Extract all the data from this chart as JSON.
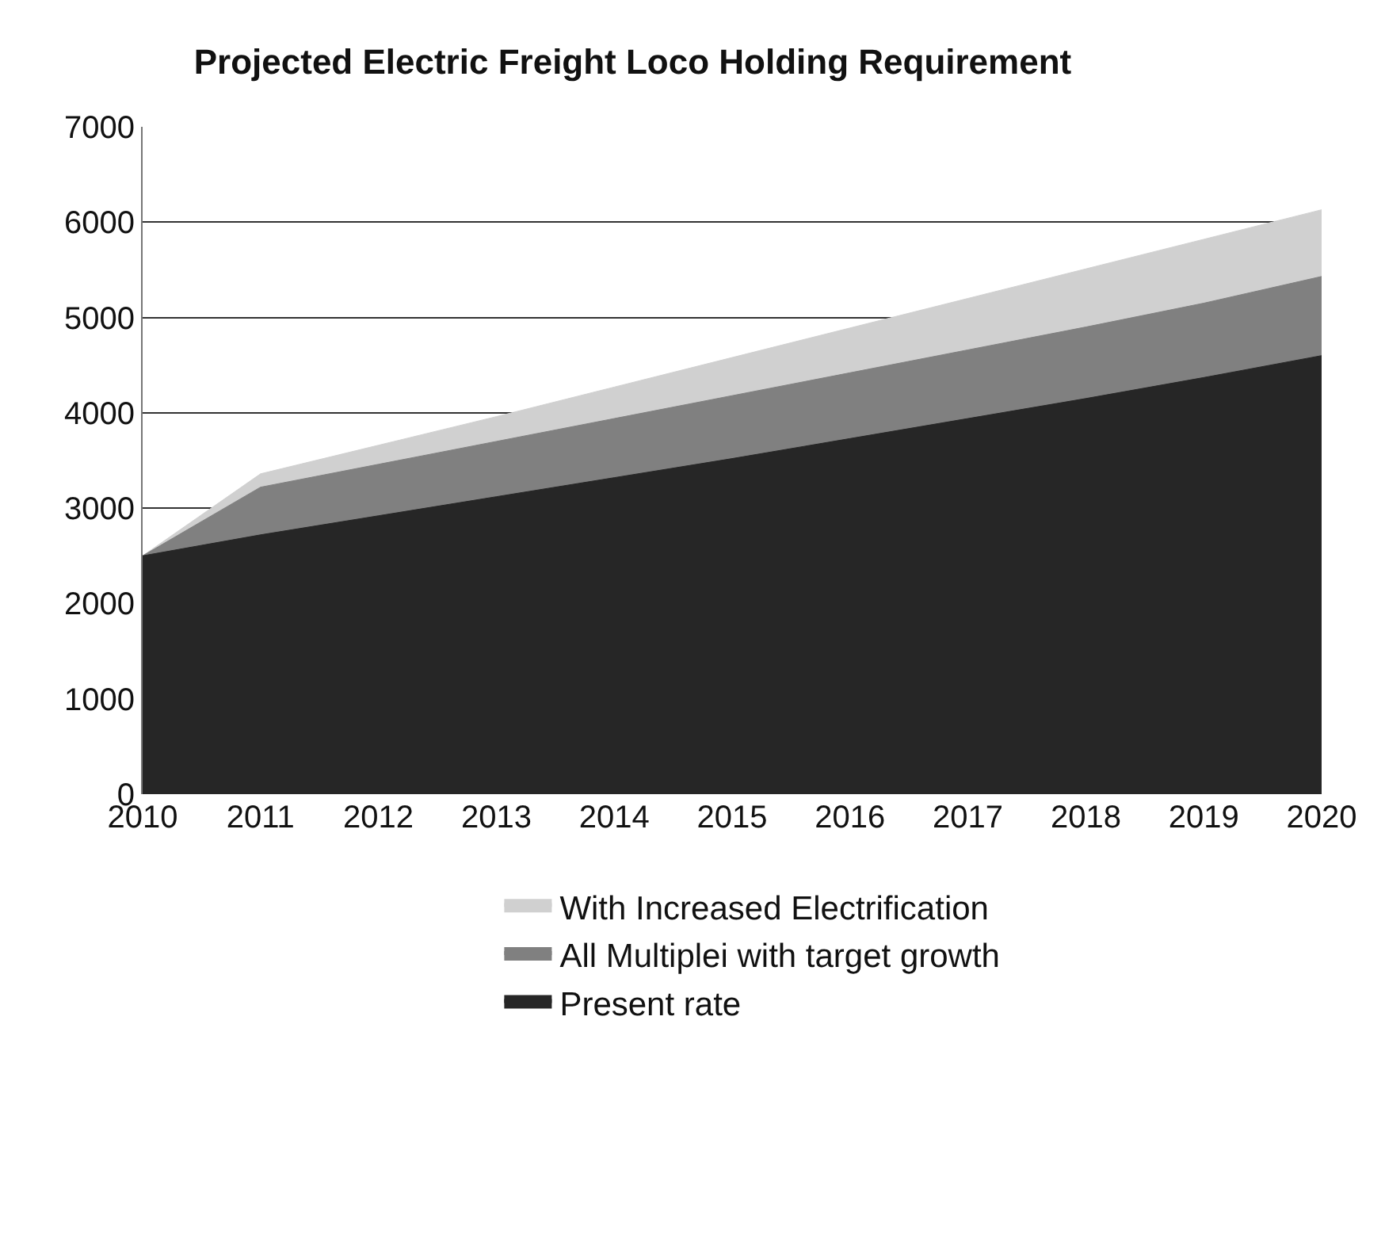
{
  "chart_data": {
    "type": "area",
    "title": "Projected Electric Freight Loco Holding Requirement",
    "categories": [
      "2010",
      "2011",
      "2012",
      "2013",
      "2014",
      "2015",
      "2016",
      "2017",
      "2018",
      "2019",
      "2020"
    ],
    "series": [
      {
        "name": "With Increased Electrification",
        "color": "#d0d0d0",
        "values": [
          2500,
          3360,
          3660,
          3960,
          4270,
          4580,
          4890,
          5200,
          5510,
          5820,
          6130
        ]
      },
      {
        "name": "All Multiplei with target growth",
        "color": "#808080",
        "values": [
          2500,
          3220,
          3460,
          3700,
          3940,
          4180,
          4420,
          4660,
          4900,
          5150,
          5430
        ]
      },
      {
        "name": "Present rate",
        "color": "#262626",
        "values": [
          2500,
          2720,
          2920,
          3120,
          3320,
          3520,
          3730,
          3940,
          4150,
          4370,
          4600
        ]
      }
    ],
    "ylim": [
      0,
      7000
    ],
    "yticks": [
      0,
      1000,
      2000,
      3000,
      4000,
      5000,
      6000,
      7000
    ],
    "grid": "y",
    "legend": "bottom"
  }
}
